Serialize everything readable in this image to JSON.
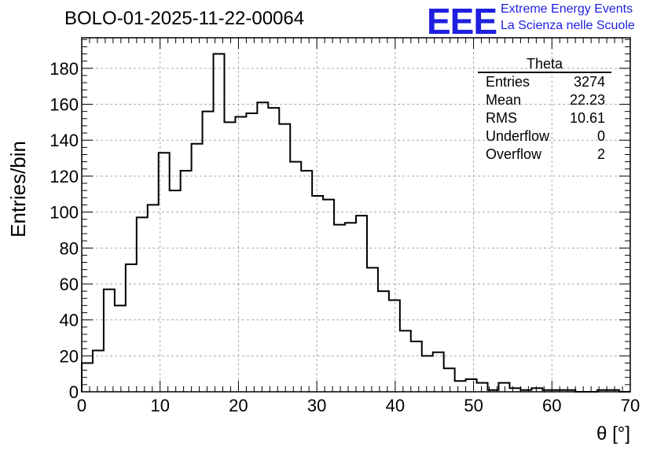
{
  "header": {
    "run_title": "BOLO-01-2025-11-22-00064",
    "logo_text": "EEE",
    "org_line1": "Extreme Energy Events",
    "org_line2": "La Scienza nelle Scuole",
    "brand_color": "#1f1fe0"
  },
  "stats_box": {
    "name": "Theta",
    "rows": [
      {
        "label": "Entries",
        "value": "3274"
      },
      {
        "label": "Mean",
        "value": "22.23"
      },
      {
        "label": "RMS",
        "value": "10.61"
      },
      {
        "label": "Underflow",
        "value": "0"
      },
      {
        "label": "Overflow",
        "value": "2"
      }
    ]
  },
  "chart_data": {
    "type": "histogram",
    "title": "",
    "xlabel": "θ [°]",
    "ylabel": "Entries/bin",
    "xlim": [
      0,
      70
    ],
    "ylim": [
      0,
      197
    ],
    "bin_width": 1.4,
    "x_ticks": [
      0,
      10,
      20,
      30,
      40,
      50,
      60,
      70
    ],
    "y_ticks": [
      0,
      20,
      40,
      60,
      80,
      100,
      120,
      140,
      160,
      180
    ],
    "grid": true,
    "values": [
      16,
      23,
      57,
      48,
      71,
      97,
      104,
      133,
      112,
      123,
      138,
      156,
      188,
      150,
      153,
      155,
      161,
      158,
      149,
      128,
      123,
      109,
      107,
      93,
      94,
      98,
      69,
      56,
      51,
      34,
      28,
      20,
      22,
      13,
      6,
      7,
      5,
      1,
      5,
      2,
      1,
      2,
      1,
      1,
      1,
      0,
      0,
      1,
      1,
      0
    ]
  }
}
